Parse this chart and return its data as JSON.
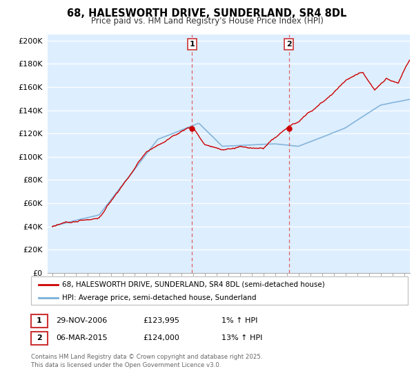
{
  "title": "68, HALESWORTH DRIVE, SUNDERLAND, SR4 8DL",
  "subtitle": "Price paid vs. HM Land Registry's House Price Index (HPI)",
  "ylabel_ticks": [
    "£0",
    "£20K",
    "£40K",
    "£60K",
    "£80K",
    "£100K",
    "£120K",
    "£140K",
    "£160K",
    "£180K",
    "£200K"
  ],
  "ytick_values": [
    0,
    20000,
    40000,
    60000,
    80000,
    100000,
    120000,
    140000,
    160000,
    180000,
    200000
  ],
  "ylim": [
    0,
    205000
  ],
  "xlim_start": 1994.6,
  "xlim_end": 2025.5,
  "purchase1_date": 2006.92,
  "purchase1_price": 123995,
  "purchase1_label": "1",
  "purchase2_date": 2015.18,
  "purchase2_price": 124000,
  "purchase2_label": "2",
  "line_color_price": "#cc0000",
  "line_color_hpi": "#7aaed6",
  "vline_color": "#e06060",
  "background_color": "#ddeeff",
  "legend_label1": "68, HALESWORTH DRIVE, SUNDERLAND, SR4 8DL (semi-detached house)",
  "legend_label2": "HPI: Average price, semi-detached house, Sunderland",
  "note1_label": "1",
  "note1_date": "29-NOV-2006",
  "note1_price": "£123,995",
  "note1_hpi": "1% ↑ HPI",
  "note2_label": "2",
  "note2_date": "06-MAR-2015",
  "note2_price": "£124,000",
  "note2_hpi": "13% ↑ HPI",
  "footer": "Contains HM Land Registry data © Crown copyright and database right 2025.\nThis data is licensed under the Open Government Licence v3.0."
}
